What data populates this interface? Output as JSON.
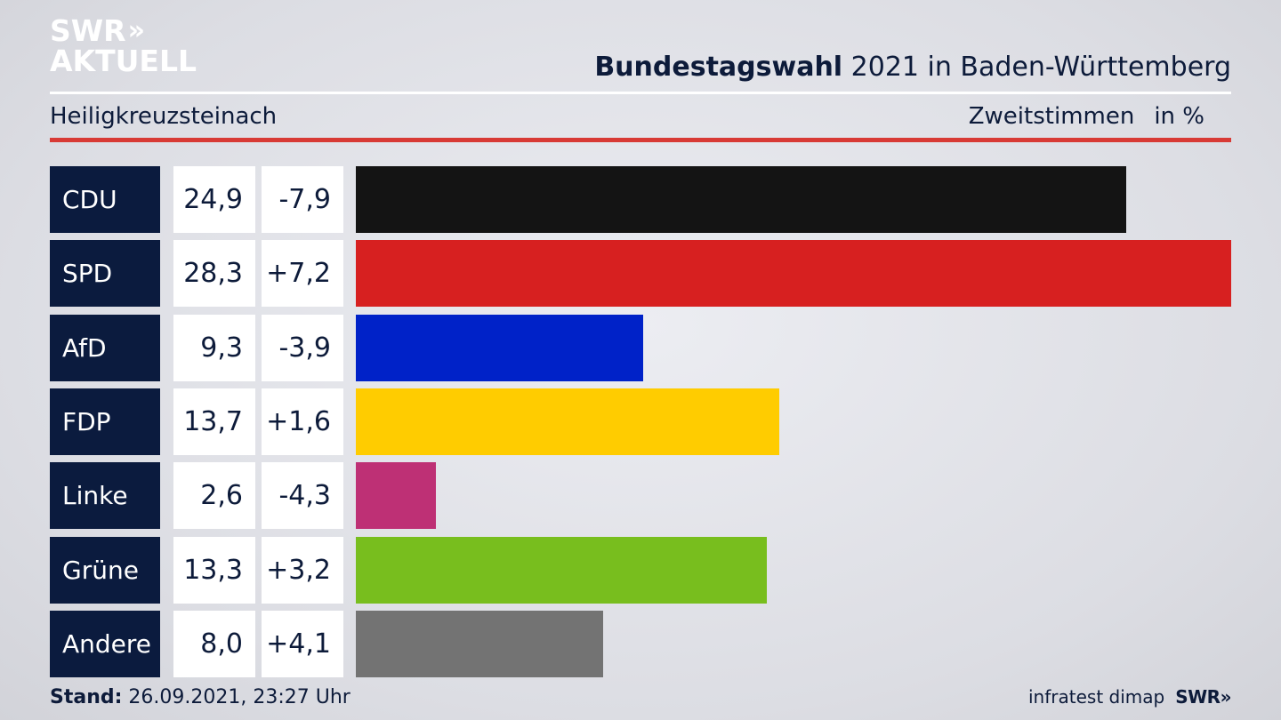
{
  "logo": {
    "line1": "SWR",
    "chevrons": "»",
    "line2": "AKTUELL"
  },
  "header": {
    "title_bold": "Bundestagswahl",
    "title_rest": "2021 in Baden-Württemberg",
    "place": "Heiligkreuzsteinach",
    "measure": "Zweitstimmen",
    "unit": "in %"
  },
  "chart_data": {
    "type": "bar",
    "orientation": "horizontal",
    "title": "Bundestagswahl 2021 in Baden-Württemberg",
    "categories": [
      "CDU",
      "SPD",
      "AfD",
      "FDP",
      "Linke",
      "Grüne",
      "Andere"
    ],
    "values": [
      24.9,
      28.3,
      9.3,
      13.7,
      2.6,
      13.3,
      8.0
    ],
    "value_labels": [
      "24,9",
      "28,3",
      "9,3",
      "13,7",
      "2,6",
      "13,3",
      "8,0"
    ],
    "changes": [
      -7.9,
      7.2,
      -3.9,
      1.6,
      -4.3,
      3.2,
      4.1
    ],
    "change_labels": [
      "-7,9",
      "+7,2",
      "-3,9",
      "+1,6",
      "-4,3",
      "+3,2",
      "+4,1"
    ],
    "colors": [
      "#141414",
      "#d72020",
      "#0022c8",
      "#ffcc00",
      "#be3075",
      "#78be1e",
      "#737373"
    ],
    "xlim": [
      0,
      28.3
    ]
  },
  "footer": {
    "stand_label": "Stand:",
    "stand_value": "26.09.2021, 23:27 Uhr",
    "source": "infratest dimap",
    "brand": "SWR»"
  }
}
